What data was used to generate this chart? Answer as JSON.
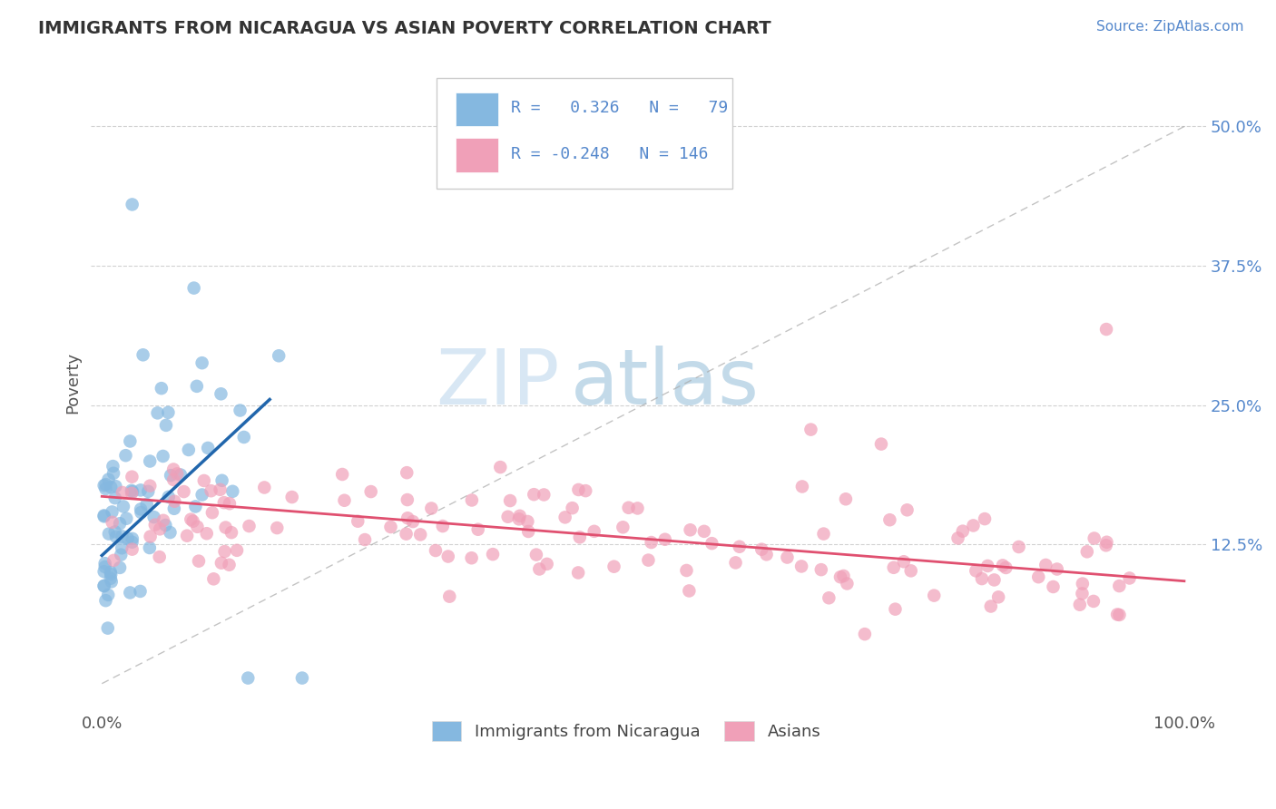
{
  "title": "IMMIGRANTS FROM NICARAGUA VS ASIAN POVERTY CORRELATION CHART",
  "source_text": "Source: ZipAtlas.com",
  "ylabel": "Poverty",
  "xlim": [
    -0.01,
    1.02
  ],
  "ylim": [
    -0.025,
    0.565
  ],
  "yticks": [
    0.125,
    0.25,
    0.375,
    0.5
  ],
  "ytick_labels": [
    "12.5%",
    "25.0%",
    "37.5%",
    "50.0%"
  ],
  "xticks": [
    0.0,
    1.0
  ],
  "xtick_labels": [
    "0.0%",
    "100.0%"
  ],
  "blue_color": "#85b8e0",
  "pink_color": "#f0a0b8",
  "blue_line_color": "#2166ac",
  "pink_line_color": "#e05070",
  "tick_color": "#5588cc",
  "title_color": "#333333",
  "source_color": "#5588cc",
  "grid_color": "#cccccc",
  "watermark_color": "#c8dff0",
  "blue_line_x": [
    0.0,
    0.155
  ],
  "blue_line_y": [
    0.115,
    0.255
  ],
  "pink_line_x": [
    0.0,
    1.0
  ],
  "pink_line_y": [
    0.168,
    0.092
  ],
  "diag_line_x": [
    0.0,
    1.0
  ],
  "diag_line_y": [
    0.0,
    0.5
  ]
}
